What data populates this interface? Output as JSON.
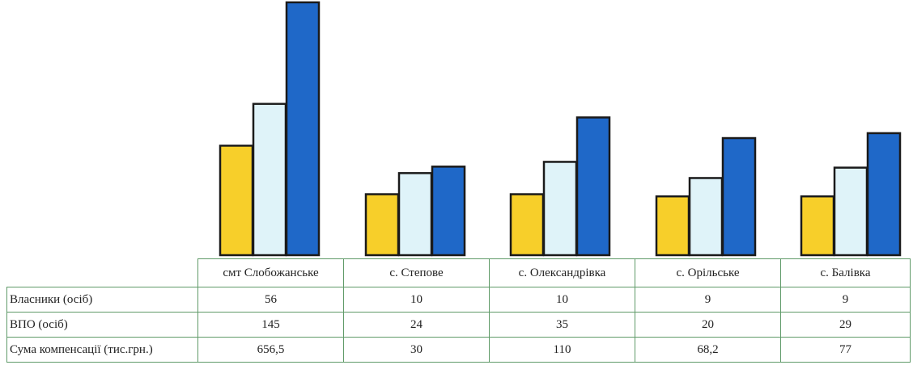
{
  "chart_data": {
    "type": "bar",
    "categories": [
      "смт Слобожанське",
      "с. Степове",
      "с. Олександрівка",
      "с. Орільське",
      "с. Балівка"
    ],
    "series": [
      {
        "name": "Власники (осіб)",
        "values": [
          56,
          10,
          10,
          9,
          9
        ],
        "color": "#f7cf2a"
      },
      {
        "name": "ВПО (осіб)",
        "values": [
          145,
          24,
          35,
          20,
          29
        ],
        "color": "#dff3f9"
      },
      {
        "name": "Сума компенсації (тис.грн.)",
        "values": [
          656.5,
          30,
          110,
          68.2,
          77
        ],
        "color": "#1f68c8"
      }
    ],
    "table": {
      "rows": [
        {
          "label": "Власники (осіб)",
          "cells": [
            "56",
            "10",
            "10",
            "9",
            "9"
          ]
        },
        {
          "label": "ВПО (осіб)",
          "cells": [
            "145",
            "24",
            "35",
            "20",
            "29"
          ]
        },
        {
          "label": "Сума компенсації (тис.грн.)",
          "cells": [
            "656,5",
            "30",
            "110",
            "68,2",
            "77"
          ]
        }
      ]
    }
  }
}
